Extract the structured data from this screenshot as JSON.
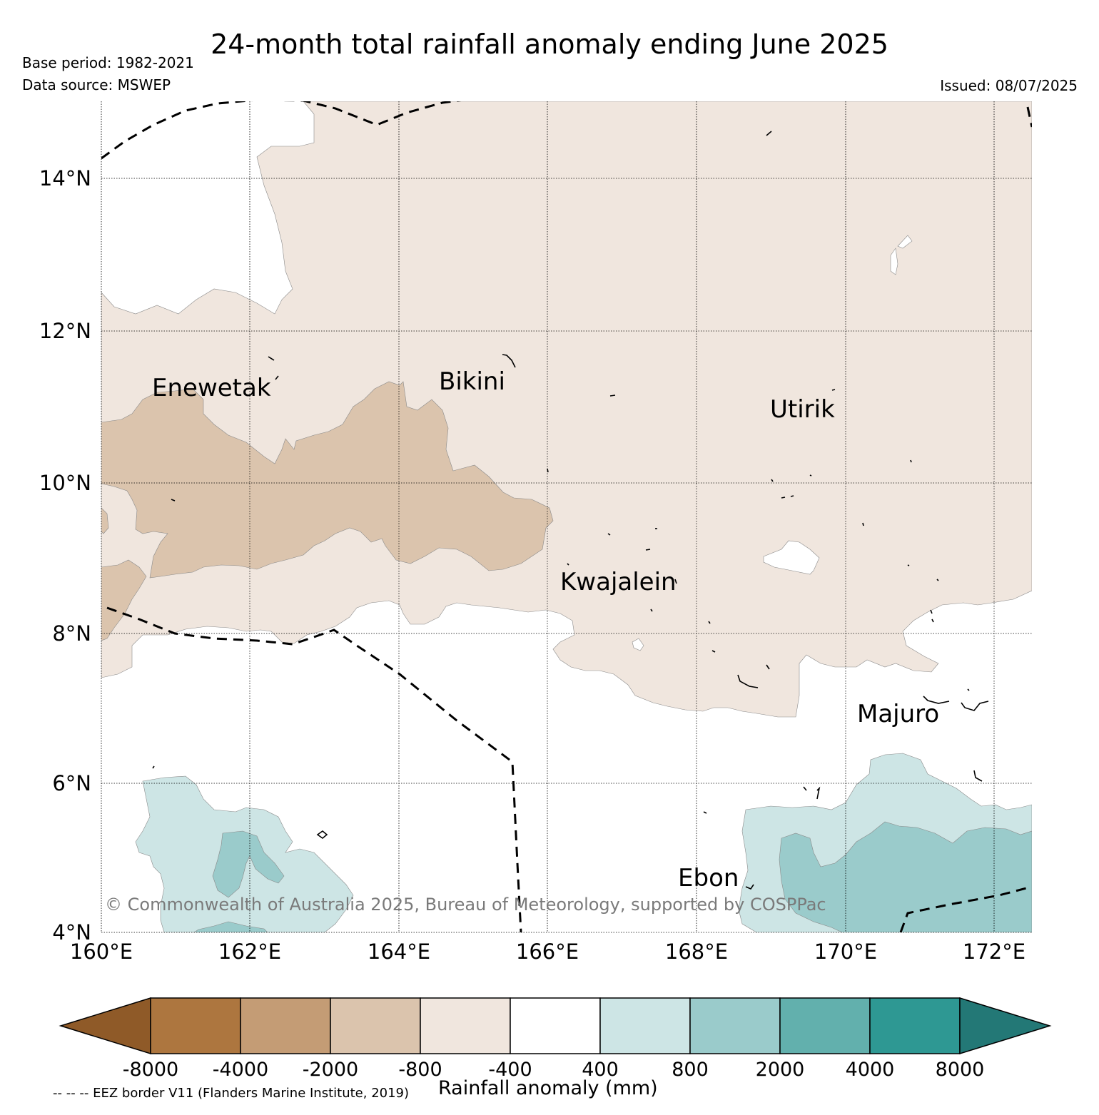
{
  "header": {
    "title": "24-month total rainfall anomaly ending June 2025",
    "base_period": "Base period: 1982-2021",
    "data_source": "Data source: MSWEP",
    "issued": "Issued: 08/07/2025"
  },
  "map": {
    "lat_labels": [
      "14°N",
      "12°N",
      "10°N",
      "8°N",
      "6°N",
      "4°N"
    ],
    "lon_labels": [
      "160°E",
      "162°E",
      "164°E",
      "166°E",
      "168°E",
      "170°E",
      "172°E"
    ],
    "places": [
      "Enewetak",
      "Bikini",
      "Utirik",
      "Kwajalein",
      "Majuro",
      "Ebon"
    ],
    "copyright": "© Commonwealth of Australia 2025, Bureau of Meteorology, supported by COSPPac"
  },
  "colorbar": {
    "label": "Rainfall anomaly (mm)",
    "ticks": [
      "-8000",
      "-4000",
      "-2000",
      "-800",
      "-400",
      "400",
      "800",
      "2000",
      "4000",
      "8000"
    ],
    "colors": [
      "#8f5a28",
      "#ad763f",
      "#c49c75",
      "#dbc4ad",
      "#f0e6de",
      "#ffffff",
      "#cde5e5",
      "#9acbcb",
      "#62b0ad",
      "#2e9893",
      "#237876"
    ]
  },
  "legend_note": "-- -- -- EEZ border V11 (Flanders Marine Institute, 2019)"
}
